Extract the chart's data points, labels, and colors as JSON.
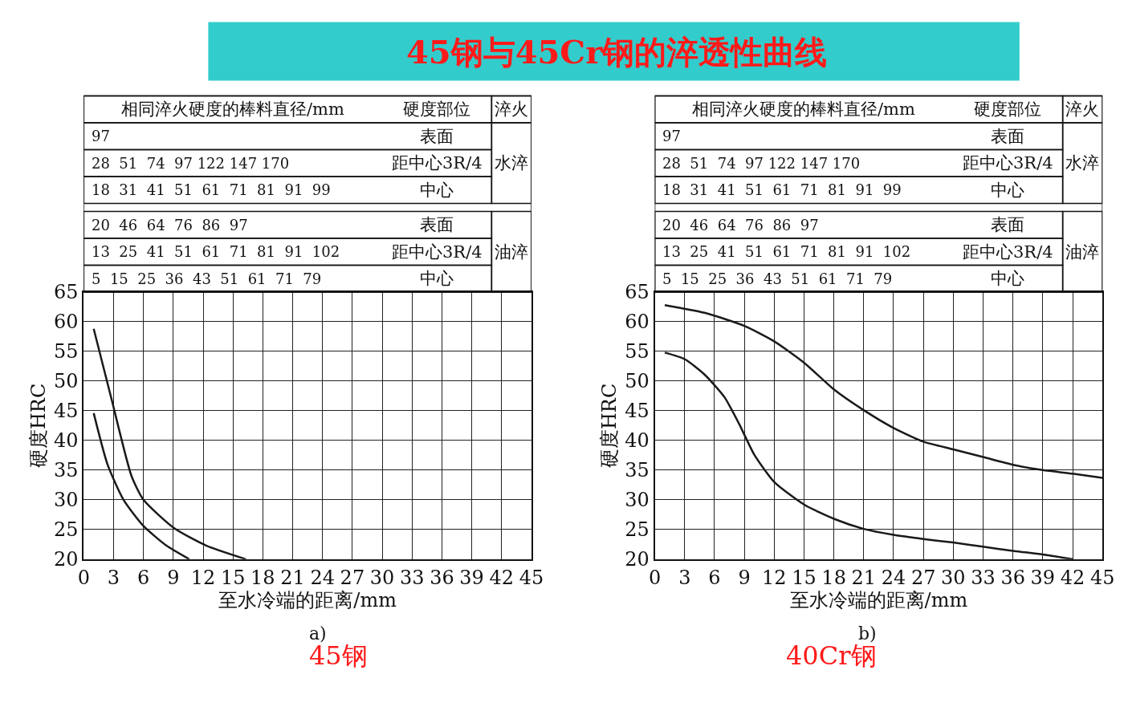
{
  "chart_data": [
    {
      "type": "line",
      "title": "45钢与45Cr钢的淬透性曲线",
      "subtitle": "45钢",
      "xlabel": "至水冷端的距离/mm",
      "ylabel": "硬度HRC",
      "series": [
        {
          "color": "#1a1a1a",
          "x": [
            1,
            2.8,
            4.8,
            6,
            9.1,
            12.3,
            16.3
          ],
          "values": [
            58.8,
            46.9,
            34,
            30,
            25.2,
            22.3,
            20
          ]
        },
        {
          "color": "#1a1a1a",
          "x": [
            1,
            2.4,
            4,
            6,
            8.3,
            10.6
          ],
          "values": [
            44.6,
            35.9,
            30,
            25.6,
            22.3,
            20
          ]
        }
      ],
      "xlim": [
        0,
        45
      ],
      "xticks": [
        0,
        3,
        6,
        9,
        12,
        15,
        18,
        21,
        24,
        27,
        30,
        33,
        36,
        39,
        42,
        45
      ],
      "ylim": [
        20,
        65
      ],
      "yticks": [
        20,
        25,
        30,
        35,
        40,
        45,
        50,
        55,
        60,
        65
      ],
      "grid": true,
      "marker": "none",
      "line_style": "solid",
      "annotations": [
        "相同淬火硬度的棒料直径/mm",
        "硬度部位",
        "淬火",
        "97",
        "表面",
        "28  51  74  97 122 147 170",
        "距中心3R/4",
        "18  31  41  51  61  71  81  91  99",
        "中心",
        "20  46  64  76  86  97",
        "表面",
        "13  25  41  51  61  71  81  91  102",
        "距中心3R/4",
        "5  15  25  36  43  51  61  71  79",
        "中心",
        "水淬",
        "油淬",
        "a)"
      ]
    },
    {
      "type": "line",
      "subtitle": "40Cr钢",
      "xlabel": "至水冷端的距离/mm",
      "ylabel": "硬度HRC",
      "series": [
        {
          "color": "#1a1a1a",
          "x": [
            1,
            5,
            9,
            12,
            15,
            18,
            21,
            24,
            27,
            30,
            33,
            36,
            39,
            42,
            45
          ],
          "values": [
            62.8,
            61.5,
            59.3,
            56.7,
            53.1,
            48.6,
            45.1,
            42.1,
            39.8,
            38.5,
            37.2,
            35.9,
            35,
            34.4,
            33.7
          ]
        },
        {
          "color": "#1a1a1a",
          "x": [
            1,
            3,
            5,
            7,
            8.5,
            10,
            12,
            15,
            18,
            21,
            24,
            27,
            30,
            33,
            36,
            39,
            42
          ],
          "values": [
            54.8,
            53.7,
            51.1,
            47.3,
            42.7,
            37.6,
            33,
            29.2,
            26.8,
            25.1,
            24.1,
            23.4,
            22.8,
            22.1,
            21.4,
            20.8,
            20
          ]
        }
      ],
      "xlim": [
        0,
        45
      ],
      "xticks": [
        0,
        3,
        6,
        9,
        12,
        15,
        18,
        21,
        24,
        27,
        30,
        33,
        36,
        39,
        42,
        45
      ],
      "ylim": [
        20,
        65
      ],
      "yticks": [
        20,
        25,
        30,
        35,
        40,
        45,
        50,
        55,
        60,
        65
      ],
      "grid": true,
      "marker": "none",
      "line_style": "solid",
      "annotations": [
        "相同淬火硬度的棒料直径/mm",
        "硬度部位",
        "淬火",
        "97",
        "表面",
        "28  51  74  97 122 147 170",
        "距中心3R/4",
        "18  31  41  51  61  71  81  91  99",
        "中心",
        "20  46  64  76  86  97",
        "表面",
        "13  25  41  51  61  71  81  91  102",
        "距中心3R/4",
        "5  15  25  36  43  51  61  71  79",
        "中心",
        "水淬",
        "油淬",
        "b)"
      ]
    }
  ]
}
